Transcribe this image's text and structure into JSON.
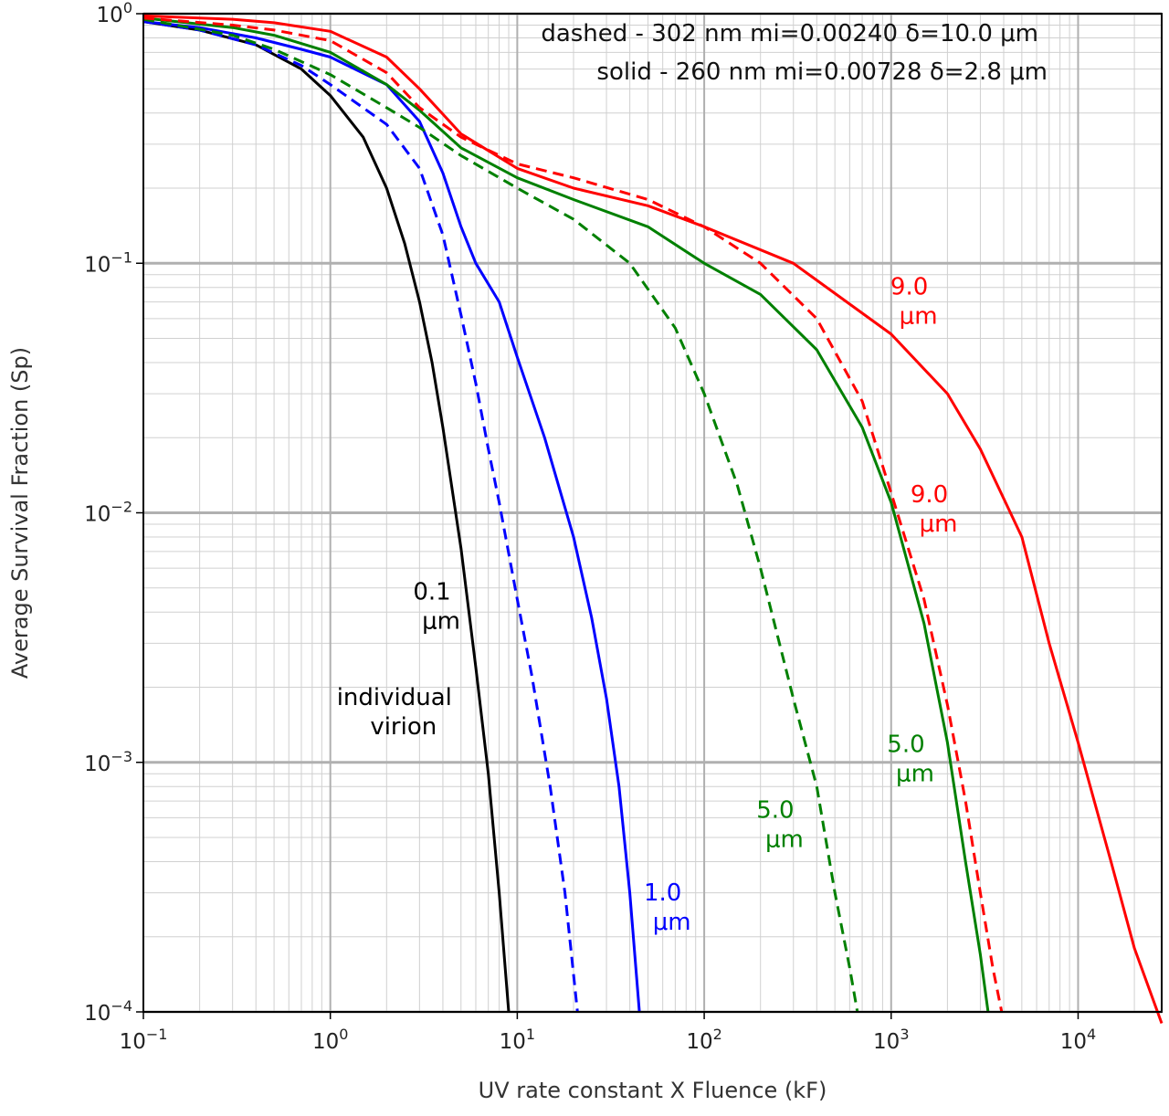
{
  "chart_data": {
    "type": "line",
    "xscale": "log",
    "yscale": "log",
    "xlim": [
      0.1,
      28000
    ],
    "ylim": [
      0.0001,
      1
    ],
    "xlabel": "UV rate constant X Fluence (kF)",
    "ylabel": "Average Survival Fraction (Sp)",
    "grid": "major and minor",
    "x_ticks": [
      {
        "value": 0.1,
        "base": "10",
        "exp": "−1"
      },
      {
        "value": 1,
        "base": "10",
        "exp": "0"
      },
      {
        "value": 10,
        "base": "10",
        "exp": "1"
      },
      {
        "value": 100,
        "base": "10",
        "exp": "2"
      },
      {
        "value": 1000,
        "base": "10",
        "exp": "3"
      },
      {
        "value": 10000,
        "base": "10",
        "exp": "4"
      }
    ],
    "y_ticks": [
      {
        "value": 0.0001,
        "base": "10",
        "exp": "−4"
      },
      {
        "value": 0.001,
        "base": "10",
        "exp": "−3"
      },
      {
        "value": 0.01,
        "base": "10",
        "exp": "−2"
      },
      {
        "value": 0.1,
        "base": "10",
        "exp": "−1"
      },
      {
        "value": 1,
        "base": "10",
        "exp": "0"
      }
    ],
    "legend_lines": {
      "dashed": "dashed - 302 nm  mi=0.00240 δ=10.0 μm",
      "solid": "solid - 260 nm  mi=0.00728 δ=2.8 μm"
    },
    "series": [
      {
        "style": "solid",
        "color": "#000000",
        "points": [
          [
            0.1,
            0.93
          ],
          [
            0.2,
            0.86
          ],
          [
            0.4,
            0.75
          ],
          [
            0.7,
            0.6
          ],
          [
            1,
            0.47
          ],
          [
            1.5,
            0.32
          ],
          [
            2,
            0.2
          ],
          [
            2.5,
            0.12
          ],
          [
            3,
            0.07
          ],
          [
            3.5,
            0.04
          ],
          [
            4,
            0.022
          ],
          [
            5,
            0.0072
          ],
          [
            6,
            0.0024
          ],
          [
            7,
            0.0009
          ],
          [
            8,
            0.0003
          ],
          [
            9,
            0.0001
          ]
        ]
      },
      {
        "style": "dashed",
        "color": "#0000ff",
        "points": [
          [
            0.1,
            0.93
          ],
          [
            0.2,
            0.86
          ],
          [
            0.4,
            0.75
          ],
          [
            0.7,
            0.62
          ],
          [
            1,
            0.52
          ],
          [
            2,
            0.36
          ],
          [
            3,
            0.24
          ],
          [
            4,
            0.13
          ],
          [
            5,
            0.062
          ],
          [
            6,
            0.033
          ],
          [
            7,
            0.018
          ],
          [
            8,
            0.011
          ],
          [
            10,
            0.0045
          ],
          [
            12,
            0.0022
          ],
          [
            15,
            0.0008
          ],
          [
            18,
            0.0003
          ],
          [
            21,
            0.0001
          ]
        ]
      },
      {
        "style": "solid",
        "color": "#0000ff",
        "points": [
          [
            0.1,
            0.93
          ],
          [
            0.2,
            0.88
          ],
          [
            0.4,
            0.8
          ],
          [
            0.7,
            0.72
          ],
          [
            1,
            0.67
          ],
          [
            2,
            0.52
          ],
          [
            3,
            0.37
          ],
          [
            4,
            0.23
          ],
          [
            5,
            0.14
          ],
          [
            6,
            0.1
          ],
          [
            8,
            0.07
          ],
          [
            10,
            0.042
          ],
          [
            14,
            0.02
          ],
          [
            20,
            0.008
          ],
          [
            25,
            0.0038
          ],
          [
            30,
            0.0018
          ],
          [
            35,
            0.0008
          ],
          [
            40,
            0.0003
          ],
          [
            45,
            0.0001
          ]
        ]
      },
      {
        "style": "dashed",
        "color": "#008000",
        "points": [
          [
            0.1,
            0.95
          ],
          [
            0.3,
            0.82
          ],
          [
            0.5,
            0.72
          ],
          [
            1,
            0.57
          ],
          [
            2,
            0.42
          ],
          [
            3,
            0.35
          ],
          [
            5,
            0.27
          ],
          [
            10,
            0.2
          ],
          [
            20,
            0.15
          ],
          [
            40,
            0.1
          ],
          [
            70,
            0.055
          ],
          [
            100,
            0.03
          ],
          [
            150,
            0.013
          ],
          [
            200,
            0.006
          ],
          [
            300,
            0.0018
          ],
          [
            400,
            0.0008
          ],
          [
            500,
            0.0003
          ],
          [
            600,
            0.00015
          ],
          [
            660,
            0.0001
          ]
        ]
      },
      {
        "style": "solid",
        "color": "#008000",
        "points": [
          [
            0.1,
            0.96
          ],
          [
            0.3,
            0.88
          ],
          [
            0.5,
            0.82
          ],
          [
            1,
            0.7
          ],
          [
            2,
            0.52
          ],
          [
            3,
            0.41
          ],
          [
            5,
            0.29
          ],
          [
            10,
            0.22
          ],
          [
            20,
            0.18
          ],
          [
            50,
            0.14
          ],
          [
            100,
            0.1
          ],
          [
            200,
            0.075
          ],
          [
            400,
            0.045
          ],
          [
            700,
            0.022
          ],
          [
            1000,
            0.011
          ],
          [
            1500,
            0.0036
          ],
          [
            2000,
            0.0012
          ],
          [
            2500,
            0.0004
          ],
          [
            3000,
            0.00017
          ],
          [
            3300,
            0.0001
          ]
        ]
      },
      {
        "style": "dashed",
        "color": "#ff0000",
        "points": [
          [
            0.1,
            0.96
          ],
          [
            0.3,
            0.9
          ],
          [
            0.5,
            0.86
          ],
          [
            1,
            0.78
          ],
          [
            2,
            0.58
          ],
          [
            3,
            0.42
          ],
          [
            5,
            0.32
          ],
          [
            10,
            0.25
          ],
          [
            20,
            0.22
          ],
          [
            50,
            0.18
          ],
          [
            100,
            0.14
          ],
          [
            200,
            0.1
          ],
          [
            400,
            0.06
          ],
          [
            700,
            0.028
          ],
          [
            1000,
            0.012
          ],
          [
            1500,
            0.0045
          ],
          [
            2000,
            0.0017
          ],
          [
            2500,
            0.0007
          ],
          [
            3000,
            0.0003
          ],
          [
            3500,
            0.00015
          ],
          [
            3900,
            0.0001
          ]
        ]
      },
      {
        "style": "solid",
        "color": "#ff0000",
        "points": [
          [
            0.1,
            0.98
          ],
          [
            0.3,
            0.95
          ],
          [
            0.5,
            0.92
          ],
          [
            1,
            0.85
          ],
          [
            2,
            0.67
          ],
          [
            3,
            0.5
          ],
          [
            5,
            0.33
          ],
          [
            10,
            0.24
          ],
          [
            20,
            0.2
          ],
          [
            50,
            0.17
          ],
          [
            100,
            0.14
          ],
          [
            300,
            0.1
          ],
          [
            1000,
            0.052
          ],
          [
            2000,
            0.03
          ],
          [
            3000,
            0.018
          ],
          [
            5000,
            0.008
          ],
          [
            7000,
            0.003
          ],
          [
            10000,
            0.0012
          ],
          [
            15000,
            0.0004
          ],
          [
            20000,
            0.00018
          ],
          [
            28000,
            9e-05
          ]
        ]
      }
    ],
    "annotations": [
      {
        "line1": "0.1",
        "line2": "μm",
        "color": "#000000",
        "x": 3.5,
        "y": 0.0045
      },
      {
        "line1": "individual",
        "line2": "virion",
        "color": "#000000",
        "x": 2.2,
        "y": 0.0017
      },
      {
        "line1": "1.0",
        "line2": "μm",
        "color": "#0000ff",
        "x": 60,
        "y": 0.00028
      },
      {
        "line1": "5.0",
        "line2": "μm",
        "color": "#008000",
        "x": 240,
        "y": 0.0006
      },
      {
        "line1": "5.0",
        "line2": "μm",
        "color": "#008000",
        "x": 1200,
        "y": 0.0011
      },
      {
        "line1": "9.0",
        "line2": "μm",
        "color": "#ff0000",
        "x": 1600,
        "y": 0.011
      },
      {
        "line1": "9.0",
        "line2": "μm",
        "color": "#ff0000",
        "x": 1250,
        "y": 0.075
      }
    ]
  }
}
